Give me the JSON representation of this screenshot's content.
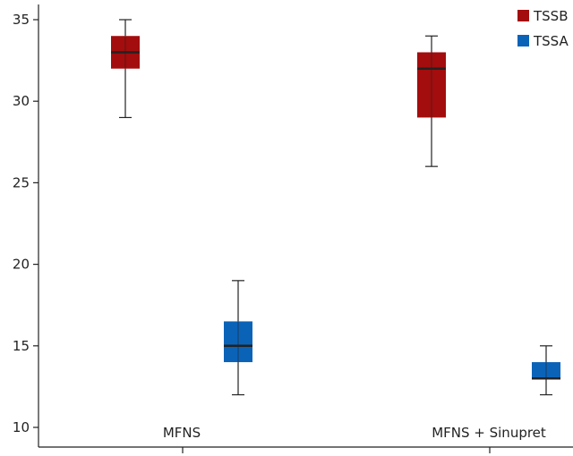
{
  "chart_data": {
    "type": "box",
    "categories": [
      "MFNS",
      "MFNS + Sinupret"
    ],
    "ylim": [
      10,
      35
    ],
    "yticks": [
      10,
      15,
      20,
      25,
      30,
      35
    ],
    "grid": false,
    "legend_position": "top-right",
    "series": [
      {
        "name": "TSSB",
        "color": "#a30d0d",
        "boxes": [
          {
            "category": "MFNS",
            "min": 29,
            "q1": 32,
            "median": 33,
            "q3": 34,
            "max": 35
          },
          {
            "category": "MFNS + Sinupret",
            "min": 26,
            "q1": 29,
            "median": 32,
            "q3": 33,
            "max": 34
          }
        ]
      },
      {
        "name": "TSSA",
        "color": "#0b63b8",
        "boxes": [
          {
            "category": "MFNS",
            "min": 12,
            "q1": 14,
            "median": 15,
            "q3": 16.5,
            "max": 19
          },
          {
            "category": "MFNS + Sinupret",
            "min": 12,
            "q1": 13,
            "median": 13,
            "q3": 14,
            "max": 15
          }
        ]
      }
    ]
  }
}
